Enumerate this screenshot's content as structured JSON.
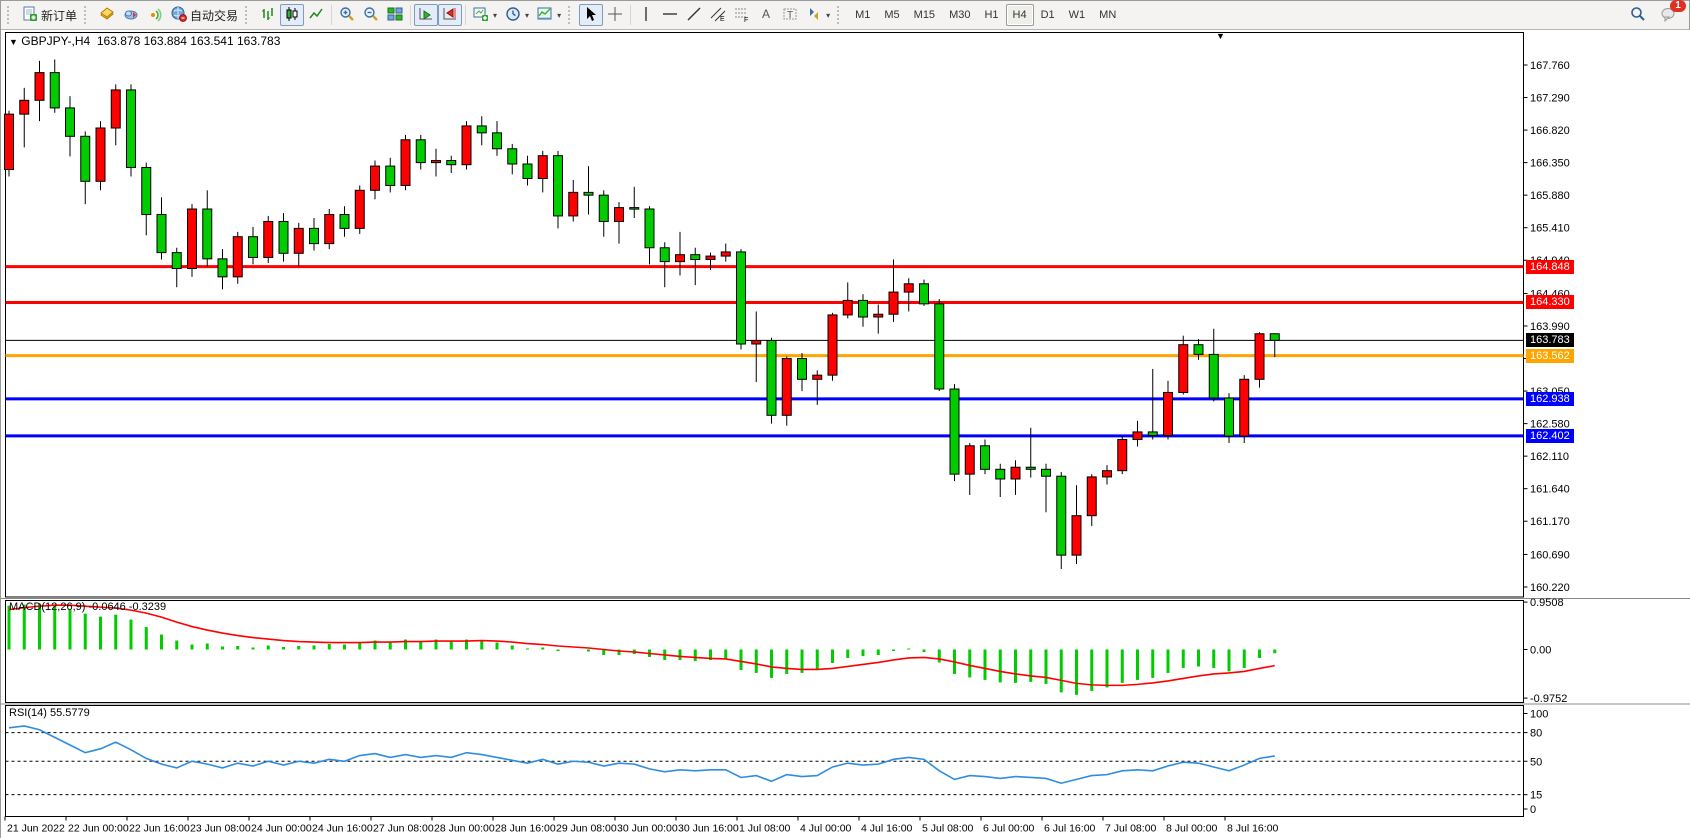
{
  "toolbar": {
    "new_order_label": "新订单",
    "autotrade_label": "自动交易",
    "timeframes": [
      "M1",
      "M5",
      "M15",
      "M30",
      "H1",
      "H4",
      "D1",
      "W1",
      "MN"
    ],
    "active_timeframe": "H4",
    "notification_badge": "1"
  },
  "chart": {
    "title_symbol": "GBPJPY-,H4",
    "title_ohlc": "163.878 163.884 163.541 163.783",
    "macd_label": "MACD(12,26,9)",
    "macd_values": "-0.0646 -0.3239",
    "rsi_label": "RSI(14)",
    "rsi_value": "55.5779"
  },
  "chart_data": [
    {
      "type": "candlestick",
      "symbol": "GBPJPY-",
      "timeframe": "H4",
      "title": "GBPJPY-,H4 163.878 163.884 163.541 163.783",
      "up_color": "#FF0000",
      "down_color": "#00CC00",
      "note": "chinese color convention: red = bullish, green = bearish",
      "current_price": 163.783,
      "y_ticks": [
        167.76,
        167.29,
        166.82,
        166.35,
        165.88,
        165.41,
        164.94,
        164.46,
        163.99,
        163.52,
        163.05,
        162.58,
        162.11,
        161.64,
        161.17,
        160.69,
        160.22
      ],
      "levels": [
        {
          "price": 164.848,
          "color": "#FF0000",
          "lw": 3
        },
        {
          "price": 164.33,
          "color": "#FF0000",
          "lw": 3
        },
        {
          "price": 163.783,
          "color": "#000000",
          "lw": 1
        },
        {
          "price": 163.562,
          "color": "#FFA500",
          "lw": 3
        },
        {
          "price": 162.938,
          "color": "#0000FF",
          "lw": 3
        },
        {
          "price": 162.402,
          "color": "#0000FF",
          "lw": 3
        }
      ],
      "x_labels": [
        "21 Jun 2022",
        "22 Jun 00:00",
        "22 Jun 16:00",
        "23 Jun 08:00",
        "24 Jun 00:00",
        "24 Jun 16:00",
        "27 Jun 08:00",
        "28 Jun 00:00",
        "28 Jun 16:00",
        "29 Jun 08:00",
        "30 Jun 00:00",
        "30 Jun 16:00",
        "1 Jul 08:00",
        "4 Jul 00:00",
        "4 Jul 16:00",
        "5 Jul 08:00",
        "6 Jul 00:00",
        "6 Jul 16:00",
        "7 Jul 08:00",
        "8 Jul 00:00",
        "8 Jul 16:00"
      ],
      "ohlc": [
        [
          166.25,
          167.1,
          166.15,
          167.05
        ],
        [
          167.05,
          167.43,
          166.57,
          167.25
        ],
        [
          167.25,
          167.82,
          166.95,
          167.65
        ],
        [
          167.65,
          167.84,
          167.07,
          167.14
        ],
        [
          167.14,
          167.31,
          166.44,
          166.73
        ],
        [
          166.73,
          166.8,
          165.75,
          166.08
        ],
        [
          166.08,
          166.95,
          165.95,
          166.85
        ],
        [
          166.85,
          167.48,
          166.6,
          167.4
        ],
        [
          167.4,
          167.48,
          166.15,
          166.28
        ],
        [
          166.28,
          166.35,
          165.3,
          165.6
        ],
        [
          165.6,
          165.85,
          164.95,
          165.05
        ],
        [
          165.05,
          165.12,
          164.55,
          164.82
        ],
        [
          164.82,
          165.75,
          164.7,
          165.68
        ],
        [
          165.68,
          165.95,
          164.85,
          164.96
        ],
        [
          164.96,
          165.1,
          164.52,
          164.7
        ],
        [
          164.7,
          165.35,
          164.6,
          165.28
        ],
        [
          165.28,
          165.42,
          164.88,
          164.98
        ],
        [
          164.98,
          165.58,
          164.9,
          165.5
        ],
        [
          165.5,
          165.62,
          164.92,
          165.04
        ],
        [
          165.04,
          165.48,
          164.85,
          165.4
        ],
        [
          165.4,
          165.55,
          165.08,
          165.18
        ],
        [
          165.18,
          165.68,
          165.1,
          165.6
        ],
        [
          165.6,
          165.72,
          165.28,
          165.4
        ],
        [
          165.4,
          166.02,
          165.32,
          165.95
        ],
        [
          165.95,
          166.38,
          165.82,
          166.3
        ],
        [
          166.3,
          166.42,
          165.92,
          166.02
        ],
        [
          166.02,
          166.75,
          165.95,
          166.68
        ],
        [
          166.68,
          166.75,
          166.25,
          166.35
        ],
        [
          166.35,
          166.55,
          166.15,
          166.38
        ],
        [
          166.38,
          166.45,
          166.2,
          166.32
        ],
        [
          166.32,
          166.95,
          166.25,
          166.88
        ],
        [
          166.88,
          167.02,
          166.6,
          166.78
        ],
        [
          166.78,
          166.95,
          166.45,
          166.55
        ],
        [
          166.55,
          166.62,
          166.18,
          166.33
        ],
        [
          166.33,
          166.45,
          166.02,
          166.12
        ],
        [
          166.12,
          166.52,
          165.92,
          166.45
        ],
        [
          166.45,
          166.52,
          165.4,
          165.58
        ],
        [
          165.58,
          166.1,
          165.5,
          165.92
        ],
        [
          165.92,
          166.3,
          165.6,
          165.88
        ],
        [
          165.88,
          165.95,
          165.28,
          165.5
        ],
        [
          165.5,
          165.78,
          165.18,
          165.7
        ],
        [
          165.7,
          166.0,
          165.55,
          165.68
        ],
        [
          165.68,
          165.72,
          164.88,
          165.12
        ],
        [
          165.12,
          165.2,
          164.55,
          164.92
        ],
        [
          164.92,
          165.35,
          164.72,
          165.02
        ],
        [
          165.02,
          165.12,
          164.58,
          164.95
        ],
        [
          164.95,
          165.05,
          164.8,
          165.0
        ],
        [
          165.0,
          165.18,
          164.92,
          165.06
        ],
        [
          165.06,
          165.1,
          163.65,
          163.73
        ],
        [
          163.73,
          164.2,
          163.18,
          163.78
        ],
        [
          163.78,
          163.82,
          162.58,
          162.7
        ],
        [
          162.7,
          163.55,
          162.55,
          163.52
        ],
        [
          163.52,
          163.6,
          163.05,
          163.22
        ],
        [
          163.22,
          163.35,
          162.85,
          163.28
        ],
        [
          163.28,
          164.18,
          163.2,
          164.15
        ],
        [
          164.15,
          164.62,
          164.1,
          164.36
        ],
        [
          164.36,
          164.45,
          163.98,
          164.12
        ],
        [
          164.12,
          164.3,
          163.88,
          164.16
        ],
        [
          164.16,
          164.95,
          164.05,
          164.48
        ],
        [
          164.48,
          164.68,
          164.2,
          164.6
        ],
        [
          164.6,
          164.66,
          164.28,
          164.31
        ],
        [
          164.31,
          164.38,
          163.05,
          163.08
        ],
        [
          163.08,
          163.15,
          161.75,
          161.85
        ],
        [
          161.85,
          162.3,
          161.55,
          162.26
        ],
        [
          162.26,
          162.35,
          161.85,
          161.92
        ],
        [
          161.92,
          162.0,
          161.52,
          161.78
        ],
        [
          161.78,
          162.05,
          161.55,
          161.95
        ],
        [
          161.95,
          162.52,
          161.8,
          161.92
        ],
        [
          161.92,
          162.0,
          161.3,
          161.82
        ],
        [
          161.82,
          161.88,
          160.48,
          160.68
        ],
        [
          160.68,
          161.69,
          160.55,
          161.25
        ],
        [
          161.25,
          161.85,
          161.1,
          161.81
        ],
        [
          161.81,
          161.98,
          161.7,
          161.9
        ],
        [
          161.9,
          162.4,
          161.85,
          162.35
        ],
        [
          162.35,
          162.62,
          162.25,
          162.46
        ],
        [
          162.46,
          163.37,
          162.35,
          162.41
        ],
        [
          162.41,
          163.2,
          162.35,
          163.03
        ],
        [
          163.03,
          163.85,
          163.0,
          163.72
        ],
        [
          163.72,
          163.8,
          163.5,
          163.58
        ],
        [
          163.58,
          163.95,
          162.9,
          162.95
        ],
        [
          162.95,
          163.02,
          162.3,
          162.4
        ],
        [
          162.4,
          163.28,
          162.3,
          163.22
        ],
        [
          163.22,
          163.9,
          163.1,
          163.878
        ],
        [
          163.878,
          163.884,
          163.541,
          163.783
        ]
      ]
    },
    {
      "type": "bar",
      "name": "MACD(12,26,9)",
      "current_values": "-0.0646 -0.3239",
      "bar_color": "#00CC00",
      "signal_color": "#FF0000",
      "y_ticks": [
        "0.9508",
        "0.00",
        "-0.9752"
      ],
      "ylim": [
        -0.9752,
        0.9508
      ],
      "values": [
        0.88,
        0.9,
        0.92,
        0.88,
        0.8,
        0.72,
        0.66,
        0.7,
        0.6,
        0.45,
        0.3,
        0.18,
        0.1,
        0.12,
        0.06,
        0.07,
        0.04,
        0.08,
        0.05,
        0.07,
        0.08,
        0.11,
        0.1,
        0.15,
        0.18,
        0.16,
        0.2,
        0.17,
        0.2,
        0.16,
        0.2,
        0.19,
        0.14,
        0.08,
        0.02,
        0.04,
        -0.02,
        0.0,
        -0.03,
        -0.1,
        -0.1,
        -0.08,
        -0.14,
        -0.2,
        -0.2,
        -0.22,
        -0.2,
        -0.18,
        -0.4,
        -0.46,
        -0.56,
        -0.48,
        -0.46,
        -0.38,
        -0.26,
        -0.16,
        -0.12,
        -0.1,
        -0.02,
        0.02,
        -0.04,
        -0.25,
        -0.48,
        -0.55,
        -0.6,
        -0.65,
        -0.66,
        -0.64,
        -0.68,
        -0.85,
        -0.9,
        -0.82,
        -0.75,
        -0.66,
        -0.6,
        -0.56,
        -0.46,
        -0.36,
        -0.33,
        -0.36,
        -0.43,
        -0.36,
        -0.16,
        -0.0646
      ],
      "signal": [
        0.8,
        0.84,
        0.87,
        0.89,
        0.89,
        0.87,
        0.85,
        0.83,
        0.79,
        0.73,
        0.65,
        0.55,
        0.46,
        0.39,
        0.33,
        0.28,
        0.24,
        0.21,
        0.18,
        0.16,
        0.15,
        0.14,
        0.14,
        0.14,
        0.15,
        0.15,
        0.16,
        0.16,
        0.17,
        0.17,
        0.17,
        0.18,
        0.17,
        0.15,
        0.12,
        0.1,
        0.07,
        0.05,
        0.03,
        0.0,
        -0.03,
        -0.05,
        -0.08,
        -0.11,
        -0.14,
        -0.16,
        -0.18,
        -0.19,
        -0.24,
        -0.29,
        -0.35,
        -0.38,
        -0.4,
        -0.4,
        -0.38,
        -0.34,
        -0.3,
        -0.26,
        -0.21,
        -0.17,
        -0.16,
        -0.19,
        -0.25,
        -0.32,
        -0.38,
        -0.44,
        -0.49,
        -0.53,
        -0.56,
        -0.62,
        -0.68,
        -0.71,
        -0.72,
        -0.72,
        -0.7,
        -0.67,
        -0.63,
        -0.58,
        -0.53,
        -0.49,
        -0.47,
        -0.44,
        -0.38,
        -0.3239
      ]
    },
    {
      "type": "line",
      "name": "RSI(14)",
      "current_value": "55.5779",
      "line_color": "#2E8DE0",
      "y_ticks": [
        "100",
        "80",
        "50",
        "15",
        "0"
      ],
      "dashed_levels": [
        80,
        50,
        15
      ],
      "ylim": [
        0,
        100
      ],
      "values": [
        85,
        87,
        83,
        75,
        67,
        59,
        63,
        70,
        62,
        53,
        47,
        43,
        50,
        47,
        43,
        48,
        45,
        50,
        46,
        50,
        48,
        52,
        50,
        56,
        58,
        54,
        57,
        54,
        56,
        54,
        59,
        57,
        54,
        51,
        48,
        52,
        47,
        50,
        49,
        45,
        48,
        47,
        42,
        39,
        41,
        40,
        41,
        41,
        33,
        35,
        29,
        36,
        34,
        35,
        44,
        48,
        46,
        47,
        52,
        54,
        52,
        40,
        31,
        35,
        34,
        32,
        34,
        33,
        32,
        27,
        31,
        35,
        36,
        40,
        41,
        40,
        45,
        49,
        48,
        44,
        40,
        46,
        53,
        55.58
      ]
    }
  ]
}
